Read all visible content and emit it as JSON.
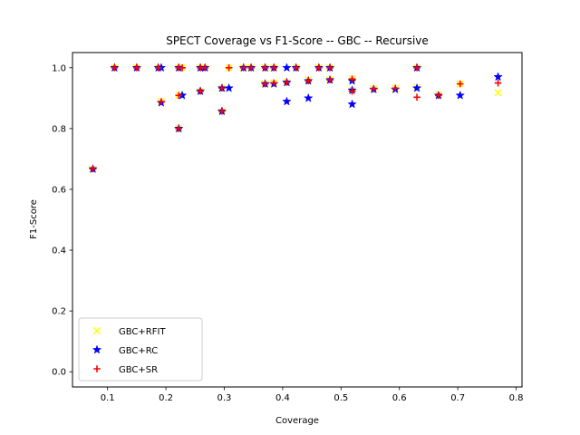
{
  "chart_data": {
    "type": "scatter",
    "title": "SPECT Coverage vs F1-Score -- GBC -- Recursive",
    "xlabel": "Coverage",
    "ylabel": "F1-Score",
    "xlim": [
      0.04,
      0.81
    ],
    "ylim": [
      -0.05,
      1.05
    ],
    "xticks": [
      0.1,
      0.2,
      0.3,
      0.4,
      0.5,
      0.6,
      0.7,
      0.8
    ],
    "xtick_labels": [
      "0.1",
      "0.2",
      "0.3",
      "0.4",
      "0.5",
      "0.6",
      "0.7",
      "0.8"
    ],
    "yticks": [
      0.0,
      0.2,
      0.4,
      0.6,
      0.8,
      1.0
    ],
    "ytick_labels": [
      "0.0",
      "0.2",
      "0.4",
      "0.6",
      "0.8",
      "1.0"
    ],
    "grid": false,
    "legend_position": "lower-left",
    "series": [
      {
        "name": "GBC+RFIT",
        "marker": "x",
        "color": "#ffff00",
        "points": [
          [
            0.075,
            0.667
          ],
          [
            0.112,
            1.0
          ],
          [
            0.15,
            1.0
          ],
          [
            0.187,
            1.0
          ],
          [
            0.192,
            0.889
          ],
          [
            0.222,
            0.8
          ],
          [
            0.222,
            1.0
          ],
          [
            0.228,
            1.0
          ],
          [
            0.222,
            0.909
          ],
          [
            0.259,
            1.0
          ],
          [
            0.259,
            0.923
          ],
          [
            0.267,
            1.0
          ],
          [
            0.296,
            0.857
          ],
          [
            0.296,
            0.933
          ],
          [
            0.308,
            1.0
          ],
          [
            0.333,
            1.0
          ],
          [
            0.346,
            1.0
          ],
          [
            0.37,
            1.0
          ],
          [
            0.37,
            0.947
          ],
          [
            0.385,
            1.0
          ],
          [
            0.385,
            0.95
          ],
          [
            0.407,
            0.952
          ],
          [
            0.423,
            1.0
          ],
          [
            0.444,
            0.96
          ],
          [
            0.462,
            1.0
          ],
          [
            0.481,
            0.96
          ],
          [
            0.481,
            1.0
          ],
          [
            0.519,
            0.963
          ],
          [
            0.519,
            0.926
          ],
          [
            0.556,
            0.931
          ],
          [
            0.593,
            0.933
          ],
          [
            0.63,
            1.0
          ],
          [
            0.63,
            0.935
          ],
          [
            0.667,
            0.912
          ],
          [
            0.704,
            0.947
          ],
          [
            0.769,
            0.918
          ]
        ]
      },
      {
        "name": "GBC+RC",
        "marker": "*",
        "color": "#0000ff",
        "points": [
          [
            0.075,
            0.667
          ],
          [
            0.112,
            1.0
          ],
          [
            0.15,
            1.0
          ],
          [
            0.187,
            1.0
          ],
          [
            0.192,
            1.0
          ],
          [
            0.192,
            0.885
          ],
          [
            0.222,
            0.8
          ],
          [
            0.222,
            1.0
          ],
          [
            0.228,
            0.909
          ],
          [
            0.259,
            1.0
          ],
          [
            0.259,
            0.923
          ],
          [
            0.267,
            1.0
          ],
          [
            0.296,
            0.857
          ],
          [
            0.296,
            0.933
          ],
          [
            0.308,
            0.933
          ],
          [
            0.333,
            1.0
          ],
          [
            0.346,
            1.0
          ],
          [
            0.37,
            1.0
          ],
          [
            0.37,
            0.947
          ],
          [
            0.385,
            1.0
          ],
          [
            0.385,
            0.947
          ],
          [
            0.407,
            1.0
          ],
          [
            0.407,
            0.889
          ],
          [
            0.407,
            0.952
          ],
          [
            0.423,
            1.0
          ],
          [
            0.444,
            0.9
          ],
          [
            0.444,
            0.957
          ],
          [
            0.462,
            1.0
          ],
          [
            0.481,
            0.96
          ],
          [
            0.481,
            1.0
          ],
          [
            0.519,
            0.957
          ],
          [
            0.519,
            0.88
          ],
          [
            0.519,
            0.926
          ],
          [
            0.556,
            0.929
          ],
          [
            0.593,
            0.929
          ],
          [
            0.63,
            1.0
          ],
          [
            0.63,
            0.933
          ],
          [
            0.667,
            0.909
          ],
          [
            0.704,
            0.909
          ],
          [
            0.769,
            0.97
          ]
        ]
      },
      {
        "name": "GBC+SR",
        "marker": "+",
        "color": "#ff0000",
        "points": [
          [
            0.075,
            0.667
          ],
          [
            0.112,
            1.0
          ],
          [
            0.15,
            1.0
          ],
          [
            0.187,
            1.0
          ],
          [
            0.192,
            0.889
          ],
          [
            0.222,
            0.8
          ],
          [
            0.222,
            1.0
          ],
          [
            0.228,
            1.0
          ],
          [
            0.222,
            0.909
          ],
          [
            0.259,
            1.0
          ],
          [
            0.259,
            0.923
          ],
          [
            0.267,
            1.0
          ],
          [
            0.296,
            0.857
          ],
          [
            0.296,
            0.933
          ],
          [
            0.308,
            1.0
          ],
          [
            0.333,
            1.0
          ],
          [
            0.346,
            1.0
          ],
          [
            0.37,
            1.0
          ],
          [
            0.37,
            0.947
          ],
          [
            0.385,
            1.0
          ],
          [
            0.385,
            0.95
          ],
          [
            0.407,
            0.952
          ],
          [
            0.423,
            1.0
          ],
          [
            0.444,
            0.957
          ],
          [
            0.462,
            1.0
          ],
          [
            0.481,
            0.96
          ],
          [
            0.481,
            1.0
          ],
          [
            0.519,
            0.963
          ],
          [
            0.519,
            0.923
          ],
          [
            0.556,
            0.931
          ],
          [
            0.593,
            0.933
          ],
          [
            0.63,
            1.0
          ],
          [
            0.63,
            0.903
          ],
          [
            0.667,
            0.909
          ],
          [
            0.704,
            0.947
          ],
          [
            0.769,
            0.95
          ]
        ]
      }
    ]
  }
}
